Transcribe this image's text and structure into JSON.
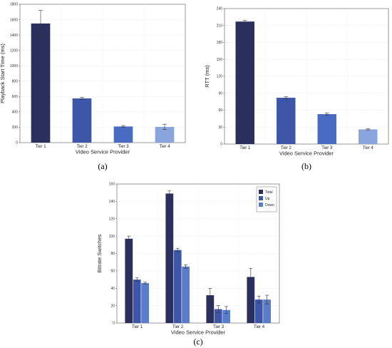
{
  "colors": {
    "tier1": "#2b2f5e",
    "tier2": "#3d56a8",
    "tier3": "#4a6bc2",
    "tier4": "#8aa4dc",
    "total": "#2b2f5e",
    "up": "#3d56a8",
    "down": "#5a7cc9"
  },
  "chart_data": [
    {
      "type": "bar",
      "panel_label": "(a)",
      "categories": [
        "Tier 1",
        "Tier 2",
        "Tier 3",
        "Tier 4"
      ],
      "values": [
        1550,
        575,
        210,
        205
      ],
      "errors": [
        170,
        15,
        12,
        35
      ],
      "xlabel": "Video Service Provider",
      "ylabel": "Playback Start Time (ms)",
      "ylim": [
        0,
        1800
      ],
      "yticks": [
        0,
        200,
        400,
        600,
        800,
        1000,
        1200,
        1400,
        1600,
        1800
      ],
      "grid": true
    },
    {
      "type": "bar",
      "panel_label": "(b)",
      "categories": [
        "Tier 1",
        "Tier 2",
        "Tier 3",
        "Tier 4"
      ],
      "values": [
        217,
        82,
        53,
        26
      ],
      "errors": [
        2,
        2,
        2,
        1
      ],
      "xlabel": "Video Service Provider",
      "ylabel": "RTT (ms)",
      "ylim": [
        0,
        240
      ],
      "yticks": [
        0,
        30,
        60,
        90,
        120,
        150,
        180,
        210,
        240
      ],
      "grid": true
    },
    {
      "type": "bar",
      "panel_label": "(c)",
      "categories": [
        "Tier 1",
        "Tier 2",
        "Tier 3",
        "Tier 4"
      ],
      "series": [
        {
          "name": "Total",
          "values": [
            97,
            149,
            32,
            53
          ],
          "errors": [
            3,
            3,
            8,
            10
          ]
        },
        {
          "name": "Up",
          "values": [
            50,
            84,
            16,
            27
          ],
          "errors": [
            2,
            2,
            4,
            4
          ]
        },
        {
          "name": "Down",
          "values": [
            46,
            65,
            15,
            27
          ],
          "errors": [
            1,
            2,
            4,
            5
          ]
        }
      ],
      "xlabel": "Video Service Provider",
      "ylabel": "Bitrate Switches",
      "ylim": [
        0,
        160
      ],
      "yticks": [
        0,
        20,
        40,
        60,
        80,
        100,
        120,
        140,
        160
      ],
      "legend": "top-right",
      "grid": true
    }
  ]
}
